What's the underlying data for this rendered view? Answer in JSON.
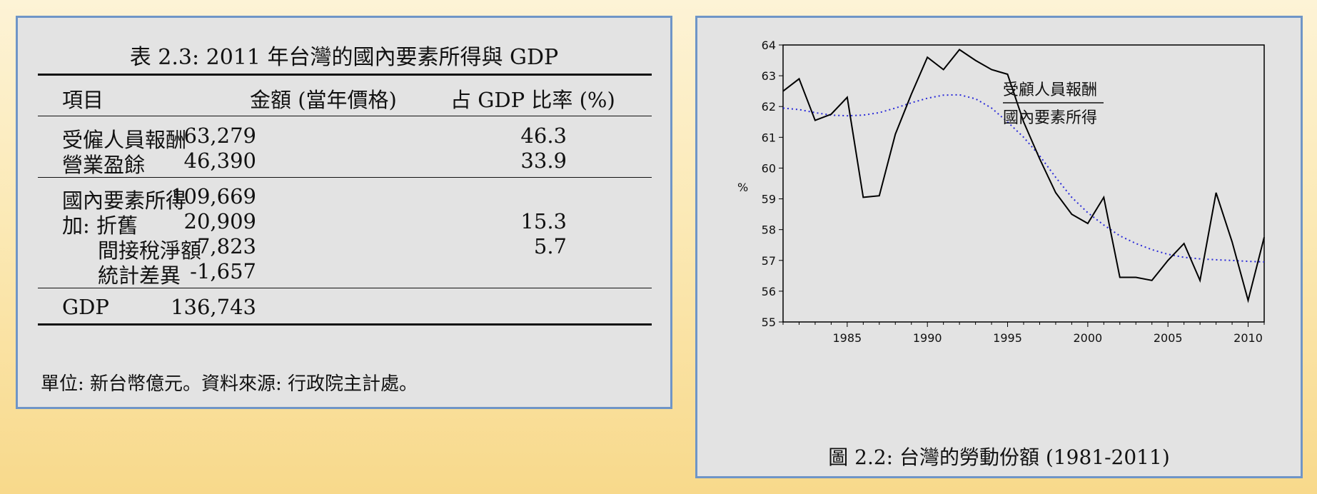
{
  "table": {
    "title": "表 2.3: 2011 年台灣的國內要素所得與 GDP",
    "headers": [
      "項目",
      "金額 (當年價格)",
      "占 GDP 比率 (%)"
    ],
    "rows": [
      {
        "label": "受僱人員報酬",
        "amount": "63,279",
        "ratio": "46.3"
      },
      {
        "label": "營業盈餘",
        "amount": "46,390",
        "ratio": "33.9"
      },
      {
        "label": "國內要素所得",
        "amount": "109,669",
        "ratio": ""
      },
      {
        "label": "加: 折舊",
        "amount": "20,909",
        "ratio": "15.3"
      },
      {
        "label": "間接稅淨額",
        "amount": "7,823",
        "ratio": "5.7"
      },
      {
        "label": "統計差異",
        "amount": "-1,657",
        "ratio": ""
      },
      {
        "label": "GDP",
        "amount": "136,743",
        "ratio": ""
      }
    ],
    "note": "單位: 新台幣億元。資料來源: 行政院主計處。"
  },
  "chart": {
    "caption": "圖 2.2: 台灣的勞動份額 (1981-2011)",
    "legend_numerator": "受顧人員報酬",
    "legend_denominator": "國內要素所得"
  },
  "chart_data": {
    "type": "line",
    "ylabel": "%",
    "xlim": [
      1981,
      2011
    ],
    "ylim": [
      55,
      64
    ],
    "xticks": [
      1985,
      1990,
      1995,
      2000,
      2005,
      2010
    ],
    "yticks": [
      55,
      56,
      57,
      58,
      59,
      60,
      61,
      62,
      63,
      64
    ],
    "grid": false,
    "series": [
      {
        "style": "solid",
        "color": "#000000",
        "x": [
          1981,
          1982,
          1983,
          1984,
          1985,
          1986,
          1987,
          1988,
          1989,
          1990,
          1991,
          1992,
          1993,
          1994,
          1995,
          1996,
          1997,
          1998,
          1999,
          2000,
          2001,
          2002,
          2003,
          2004,
          2005,
          2006,
          2007,
          2008,
          2009,
          2010,
          2011
        ],
        "y": [
          62.5,
          62.9,
          61.55,
          61.75,
          62.3,
          59.05,
          59.1,
          61.1,
          62.4,
          63.6,
          63.2,
          63.85,
          63.5,
          63.2,
          63.05,
          61.5,
          60.3,
          59.2,
          58.5,
          58.2,
          59.05,
          56.45,
          56.45,
          56.35,
          57.0,
          57.55,
          56.35,
          59.2,
          57.6,
          55.7,
          57.75
        ]
      },
      {
        "style": "dotted",
        "color": "#2b2bd8",
        "x": [
          1981,
          1982,
          1983,
          1984,
          1985,
          1986,
          1987,
          1988,
          1989,
          1990,
          1991,
          1992,
          1993,
          1994,
          1995,
          1996,
          1997,
          1998,
          1999,
          2000,
          2001,
          2002,
          2003,
          2004,
          2005,
          2006,
          2007,
          2008,
          2009,
          2010,
          2011
        ],
        "y": [
          61.95,
          61.9,
          61.8,
          61.72,
          61.7,
          61.72,
          61.8,
          61.95,
          62.12,
          62.27,
          62.37,
          62.38,
          62.25,
          61.95,
          61.5,
          61.0,
          60.4,
          59.7,
          59.05,
          58.55,
          58.15,
          57.8,
          57.55,
          57.35,
          57.2,
          57.1,
          57.05,
          57.02,
          57.0,
          56.97,
          56.95
        ]
      }
    ]
  }
}
